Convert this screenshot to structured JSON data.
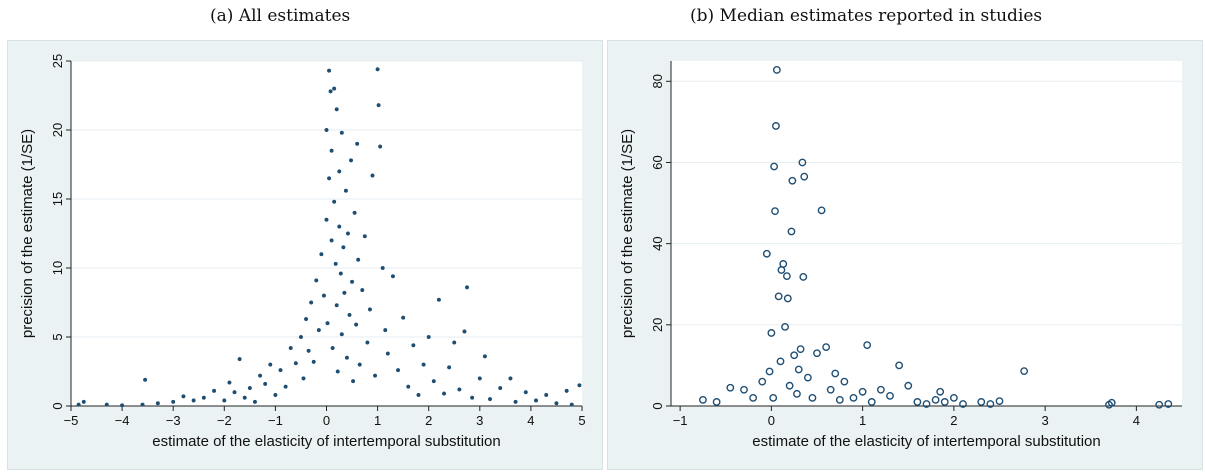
{
  "captions": {
    "a": "(a) All estimates",
    "b": "(b) Median estimates reported in studies"
  },
  "chart_data": [
    {
      "type": "scatter",
      "xlabel": "estimate of the elasticity of intertemporal substitution",
      "ylabel": "precision of the estimate (1/SE)",
      "xlim": [
        -5,
        5
      ],
      "ylim": [
        0,
        25
      ],
      "xticks": [
        -5,
        -4,
        -3,
        -2,
        -1,
        0,
        1,
        2,
        3,
        4,
        5
      ],
      "yticks": [
        0,
        5,
        10,
        15,
        20,
        25
      ],
      "grid": true,
      "marker": "filled-dot",
      "points": [
        [
          -4.85,
          0.1
        ],
        [
          -4.75,
          0.3
        ],
        [
          -4.3,
          0.1
        ],
        [
          -4.0,
          0.05
        ],
        [
          -3.6,
          0.1
        ],
        [
          -3.55,
          1.9
        ],
        [
          -3.3,
          0.2
        ],
        [
          -3.0,
          0.3
        ],
        [
          -2.8,
          0.7
        ],
        [
          -2.6,
          0.4
        ],
        [
          -2.4,
          0.6
        ],
        [
          -2.2,
          1.1
        ],
        [
          -2.0,
          0.4
        ],
        [
          -1.9,
          1.7
        ],
        [
          -1.8,
          1.0
        ],
        [
          -1.7,
          3.4
        ],
        [
          -1.6,
          0.6
        ],
        [
          -1.5,
          1.3
        ],
        [
          -1.4,
          0.3
        ],
        [
          -1.3,
          2.2
        ],
        [
          -1.2,
          1.6
        ],
        [
          -1.1,
          3.0
        ],
        [
          -1.0,
          0.8
        ],
        [
          -0.9,
          2.6
        ],
        [
          -0.8,
          1.4
        ],
        [
          -0.7,
          4.2
        ],
        [
          -0.6,
          3.1
        ],
        [
          -0.5,
          5.0
        ],
        [
          -0.45,
          2.0
        ],
        [
          -0.4,
          6.3
        ],
        [
          -0.35,
          4.0
        ],
        [
          -0.3,
          7.5
        ],
        [
          -0.25,
          3.2
        ],
        [
          -0.2,
          9.1
        ],
        [
          -0.15,
          5.5
        ],
        [
          -0.1,
          11.0
        ],
        [
          -0.05,
          8.0
        ],
        [
          0.0,
          13.5
        ],
        [
          0.0,
          20.0
        ],
        [
          0.02,
          6.0
        ],
        [
          0.05,
          24.3
        ],
        [
          0.05,
          16.5
        ],
        [
          0.08,
          22.8
        ],
        [
          0.1,
          12.0
        ],
        [
          0.1,
          18.5
        ],
        [
          0.12,
          4.2
        ],
        [
          0.15,
          14.8
        ],
        [
          0.15,
          23.0
        ],
        [
          0.18,
          10.3
        ],
        [
          0.2,
          7.3
        ],
        [
          0.2,
          21.5
        ],
        [
          0.22,
          2.5
        ],
        [
          0.25,
          17.0
        ],
        [
          0.25,
          13.0
        ],
        [
          0.28,
          9.6
        ],
        [
          0.3,
          5.2
        ],
        [
          0.3,
          19.8
        ],
        [
          0.33,
          11.5
        ],
        [
          0.35,
          8.2
        ],
        [
          0.38,
          15.6
        ],
        [
          0.4,
          3.5
        ],
        [
          0.42,
          12.5
        ],
        [
          0.45,
          6.6
        ],
        [
          0.48,
          17.8
        ],
        [
          0.5,
          9.0
        ],
        [
          0.52,
          1.8
        ],
        [
          0.55,
          14.0
        ],
        [
          0.58,
          5.9
        ],
        [
          0.6,
          19.0
        ],
        [
          0.62,
          10.6
        ],
        [
          0.65,
          3.0
        ],
        [
          0.7,
          8.4
        ],
        [
          0.75,
          12.3
        ],
        [
          0.8,
          4.6
        ],
        [
          0.85,
          7.0
        ],
        [
          0.9,
          16.7
        ],
        [
          0.95,
          2.2
        ],
        [
          1.0,
          24.4
        ],
        [
          1.02,
          21.8
        ],
        [
          1.05,
          18.8
        ],
        [
          1.1,
          10.0
        ],
        [
          1.15,
          5.5
        ],
        [
          1.2,
          3.8
        ],
        [
          1.3,
          9.4
        ],
        [
          1.4,
          2.6
        ],
        [
          1.5,
          6.4
        ],
        [
          1.6,
          1.4
        ],
        [
          1.7,
          4.4
        ],
        [
          1.8,
          0.8
        ],
        [
          1.9,
          3.0
        ],
        [
          2.0,
          5.0
        ],
        [
          2.1,
          1.8
        ],
        [
          2.2,
          7.7
        ],
        [
          2.3,
          0.9
        ],
        [
          2.4,
          2.8
        ],
        [
          2.5,
          4.6
        ],
        [
          2.6,
          1.2
        ],
        [
          2.7,
          5.4
        ],
        [
          2.75,
          8.6
        ],
        [
          2.85,
          0.6
        ],
        [
          3.0,
          2.0
        ],
        [
          3.1,
          3.6
        ],
        [
          3.2,
          0.5
        ],
        [
          3.4,
          1.3
        ],
        [
          3.6,
          2.0
        ],
        [
          3.7,
          0.3
        ],
        [
          3.9,
          1.0
        ],
        [
          4.1,
          0.4
        ],
        [
          4.3,
          0.8
        ],
        [
          4.5,
          0.2
        ],
        [
          4.7,
          1.1
        ],
        [
          4.8,
          0.1
        ],
        [
          4.95,
          1.5
        ]
      ],
      "points_note": ""
    },
    {
      "type": "scatter",
      "xlabel": "estimate of the elasticity of intertemporal substitution",
      "ylabel": "precision of the estimate (1/SE)",
      "xlim": [
        -1.1,
        4.5
      ],
      "ylim": [
        0,
        85
      ],
      "xticks": [
        -1,
        0,
        1,
        2,
        3,
        4
      ],
      "yticks": [
        0,
        20,
        40,
        60,
        80
      ],
      "grid": true,
      "marker": "hollow-circle",
      "points": [
        [
          -0.75,
          1.5
        ],
        [
          -0.6,
          1.0
        ],
        [
          -0.45,
          4.5
        ],
        [
          -0.3,
          4.0
        ],
        [
          -0.2,
          2.0
        ],
        [
          -0.1,
          6.0
        ],
        [
          -0.05,
          37.5
        ],
        [
          -0.02,
          8.5
        ],
        [
          0.0,
          18.0
        ],
        [
          0.02,
          2.0
        ],
        [
          0.03,
          59.0
        ],
        [
          0.04,
          48.0
        ],
        [
          0.05,
          69.0
        ],
        [
          0.06,
          82.8
        ],
        [
          0.08,
          27.0
        ],
        [
          0.1,
          11.0
        ],
        [
          0.11,
          33.5
        ],
        [
          0.13,
          35.0
        ],
        [
          0.15,
          19.5
        ],
        [
          0.17,
          32.0
        ],
        [
          0.18,
          26.5
        ],
        [
          0.2,
          5.0
        ],
        [
          0.22,
          43.0
        ],
        [
          0.23,
          55.5
        ],
        [
          0.25,
          12.5
        ],
        [
          0.28,
          3.0
        ],
        [
          0.3,
          9.0
        ],
        [
          0.32,
          14.0
        ],
        [
          0.34,
          60.0
        ],
        [
          0.35,
          31.8
        ],
        [
          0.36,
          56.5
        ],
        [
          0.4,
          7.0
        ],
        [
          0.45,
          2.0
        ],
        [
          0.5,
          13.0
        ],
        [
          0.55,
          48.2
        ],
        [
          0.6,
          14.5
        ],
        [
          0.65,
          4.0
        ],
        [
          0.7,
          8.0
        ],
        [
          0.75,
          1.5
        ],
        [
          0.8,
          6.0
        ],
        [
          0.9,
          2.0
        ],
        [
          1.0,
          3.5
        ],
        [
          1.05,
          15.0
        ],
        [
          1.1,
          1.0
        ],
        [
          1.2,
          4.0
        ],
        [
          1.3,
          2.5
        ],
        [
          1.4,
          10.0
        ],
        [
          1.5,
          5.0
        ],
        [
          1.6,
          1.0
        ],
        [
          1.7,
          0.5
        ],
        [
          1.8,
          1.5
        ],
        [
          1.85,
          3.5
        ],
        [
          1.9,
          1.0
        ],
        [
          2.0,
          2.0
        ],
        [
          2.1,
          0.5
        ],
        [
          2.3,
          1.0
        ],
        [
          2.4,
          0.5
        ],
        [
          2.5,
          1.2
        ],
        [
          2.77,
          8.6
        ],
        [
          3.7,
          0.3
        ],
        [
          3.73,
          0.8
        ],
        [
          4.25,
          0.3
        ],
        [
          4.35,
          0.5
        ]
      ],
      "points_note": ""
    }
  ],
  "colors": {
    "marker": "#1f4e73",
    "background": "#eaf2f3",
    "plot_bg": "#ffffff",
    "grid": "#e6eef0",
    "axis": "#222222"
  }
}
